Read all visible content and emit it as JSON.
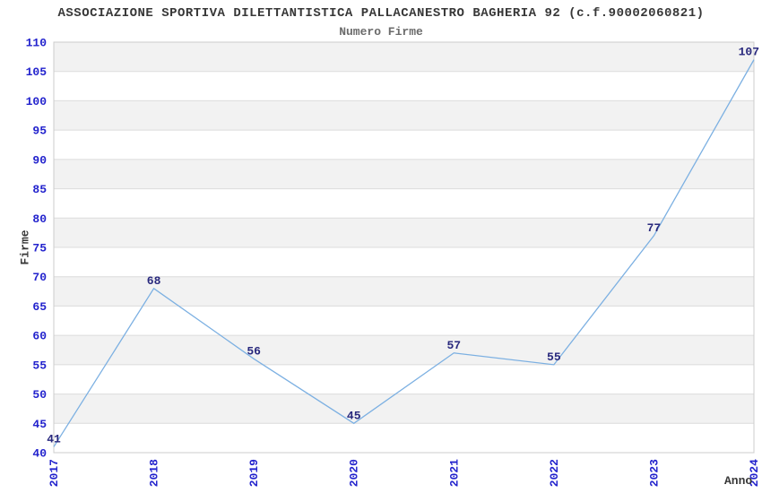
{
  "chart_data": {
    "type": "line",
    "title": "ASSOCIAZIONE SPORTIVA DILETTANTISTICA PALLACANESTRO BAGHERIA 92 (c.f.90002060821)",
    "subtitle": "Numero Firme",
    "xlabel": "Anno",
    "ylabel": "Firme",
    "categories": [
      "2017",
      "2018",
      "2019",
      "2020",
      "2021",
      "2022",
      "2023",
      "2024"
    ],
    "series": [
      {
        "name": "Numero Firme",
        "values": [
          41,
          68,
          56,
          45,
          57,
          55,
          77,
          107
        ]
      }
    ],
    "ylim": [
      40,
      110
    ],
    "ytick_step": 5,
    "yticks": [
      40,
      45,
      50,
      55,
      60,
      65,
      70,
      75,
      80,
      85,
      90,
      95,
      100,
      105,
      110
    ],
    "grid": true,
    "legend_position": "none",
    "data_labels_visible": true,
    "x_tick_rotation_deg": 90
  },
  "colors": {
    "line": "#7cb0e2",
    "tick_label": "#2323cd",
    "data_label": "#28287d",
    "band_gray": "#f2f2f2",
    "band_white": "#ffffff",
    "gridline": "#dcdcdc",
    "plot_border": "#cccccc",
    "title_text": "#373737",
    "subtitle_text": "#6b6b6b",
    "axis_title_text": "#373737",
    "background": "#ffffff"
  }
}
